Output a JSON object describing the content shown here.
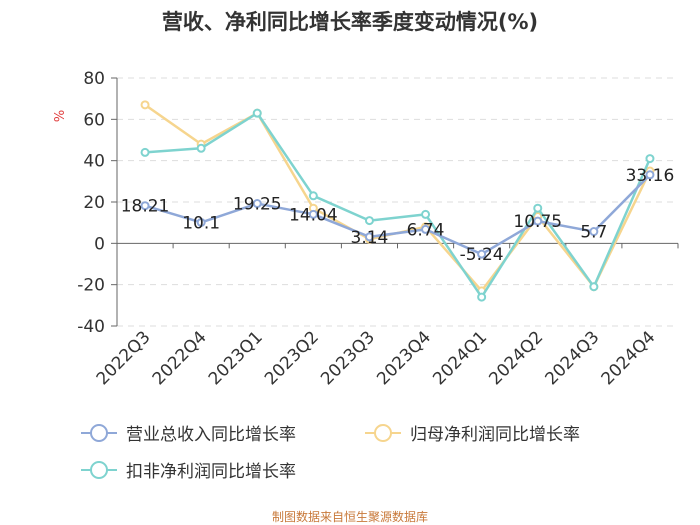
{
  "chart_data": {
    "type": "line",
    "title": "营收、净利同比增长率季度变动情况(%)",
    "ylabel": "%",
    "ylim": [
      -40,
      80
    ],
    "yticks": [
      80,
      60,
      40,
      20,
      0,
      -20,
      -40
    ],
    "categories": [
      "2022Q3",
      "2022Q4",
      "2023Q1",
      "2023Q2",
      "2023Q3",
      "2023Q4",
      "2024Q1",
      "2024Q2",
      "2024Q3",
      "2024Q4"
    ],
    "series": [
      {
        "name": "营业总收入同比增长率",
        "color": "#8fa8d8",
        "values": [
          18.21,
          10.1,
          19.25,
          14.04,
          3.14,
          6.74,
          -5.24,
          10.75,
          5.7,
          33.16
        ],
        "labels": [
          "18.21",
          "10.1",
          "19.25",
          "14.04",
          "3.14",
          "6.74",
          "-5.24",
          "10.75",
          "5.7",
          "33.16"
        ]
      },
      {
        "name": "归母净利润同比增长率",
        "color": "#f6d58e",
        "values": [
          67,
          48,
          63,
          17,
          2,
          8,
          -23,
          13,
          -21,
          35
        ]
      },
      {
        "name": "扣非净利润同比增长率",
        "color": "#7ed3cf",
        "values": [
          44,
          46,
          63,
          23,
          11,
          14,
          -26,
          17,
          -21,
          41
        ]
      }
    ],
    "source": "制图数据来自恒生聚源数据库"
  }
}
